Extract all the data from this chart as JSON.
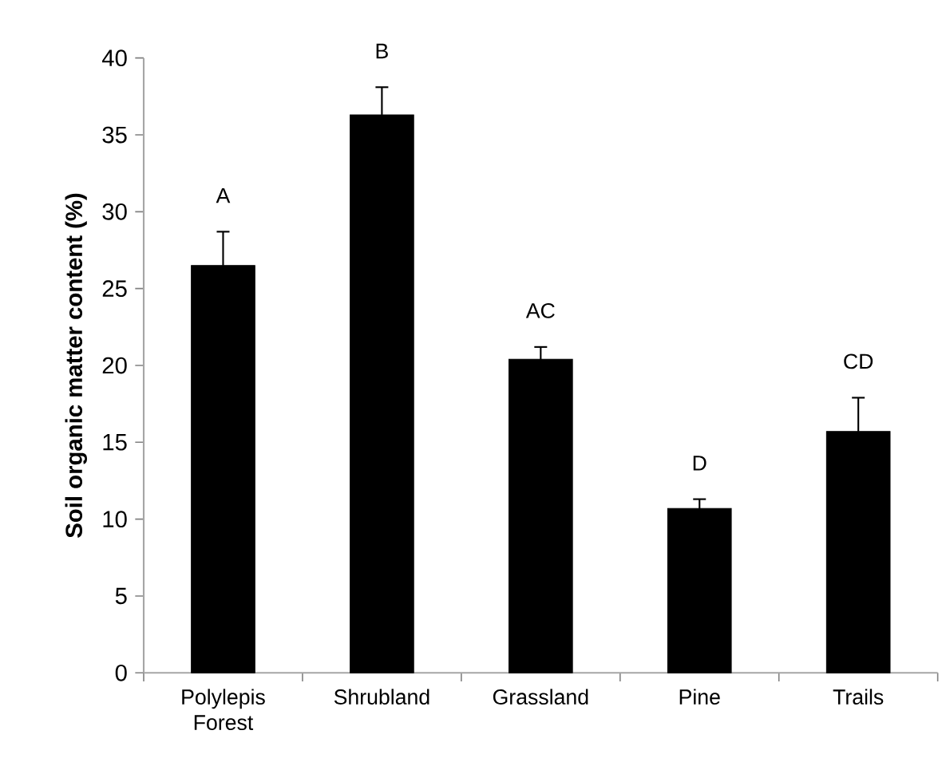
{
  "chart_data": {
    "type": "bar",
    "ylabel": "**Soil organic matter content (%)**",
    "categories": [
      "Polylepis Forest",
      "Shrubland",
      "Grassland",
      "Pine",
      "Trails"
    ],
    "values": [
      26.5,
      36.3,
      20.4,
      10.7,
      15.7
    ],
    "errors": [
      2.2,
      1.8,
      0.8,
      0.6,
      2.2
    ],
    "color": "#000000",
    "ylim": [
      0,
      40
    ],
    "yticks": [
      0,
      5,
      10,
      15,
      20,
      25,
      30,
      35,
      40
    ],
    "grid": false,
    "annotations": [
      "A",
      "B",
      "AC",
      "D",
      "CD"
    ]
  }
}
